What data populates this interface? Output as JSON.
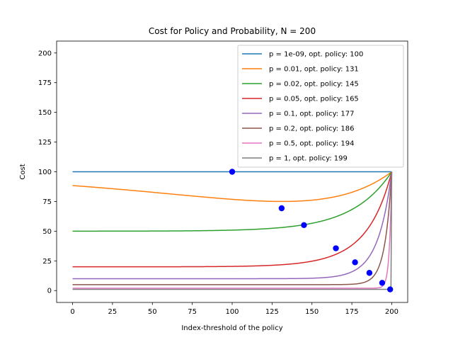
{
  "chart_data": {
    "type": "line",
    "title": "Cost for Policy and Probability, N = 200",
    "xlabel": "Index-threshold of the policy",
    "ylabel": "Cost",
    "xlim": [
      -10,
      210
    ],
    "ylim": [
      -10,
      210
    ],
    "xticks": [
      0,
      25,
      50,
      75,
      100,
      125,
      150,
      175,
      200
    ],
    "yticks": [
      0,
      25,
      50,
      75,
      100,
      125,
      150,
      175,
      200
    ],
    "grid": false,
    "legend_position": "top-right",
    "N": 200,
    "series": [
      {
        "name": "p = 1e-09, opt. policy: 100",
        "p": 1e-09,
        "color": "#1f77b4",
        "opt_policy": 100,
        "opt_cost": 100
      },
      {
        "name": "p = 0.01, opt. policy: 131",
        "p": 0.01,
        "color": "#ff7f0e",
        "opt_policy": 131,
        "opt_cost": 69.3
      },
      {
        "name": "p = 0.02, opt. policy: 145",
        "p": 0.02,
        "color": "#2ca02c",
        "opt_policy": 145,
        "opt_cost": 55.1
      },
      {
        "name": "p = 0.05, opt. policy: 165",
        "p": 0.05,
        "color": "#d62728",
        "opt_policy": 165,
        "opt_cost": 35.6
      },
      {
        "name": "p = 0.1, opt. policy: 177",
        "p": 0.1,
        "color": "#9467bd",
        "opt_policy": 177,
        "opt_cost": 23.8
      },
      {
        "name": "p = 0.2, opt. policy: 186",
        "p": 0.2,
        "color": "#8c564b",
        "opt_policy": 186,
        "opt_cost": 14.9
      },
      {
        "name": "p = 0.5, opt. policy: 194",
        "p": 0.5,
        "color": "#e377c2",
        "opt_policy": 194,
        "opt_cost": 6.5
      },
      {
        "name": "p = 1, opt. policy: 199",
        "p": 1,
        "color": "#7f7f7f",
        "opt_policy": 199,
        "opt_cost": 1.0
      }
    ],
    "marker_color": "#0000ff"
  }
}
